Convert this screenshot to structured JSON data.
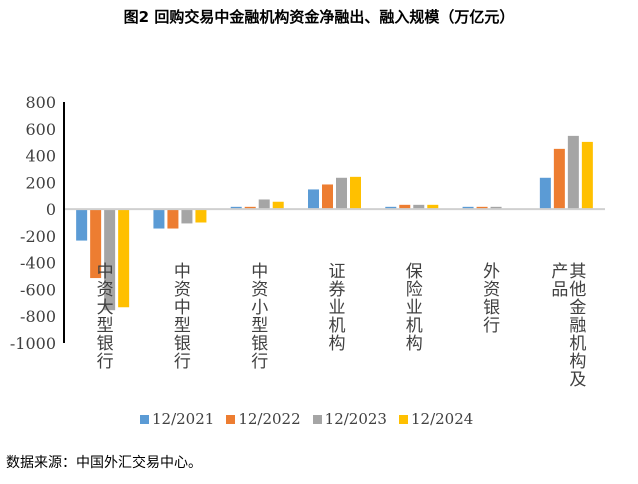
{
  "title": "图2 回购交易中金融机构资金净融出、融入规模（万亿元）",
  "source": "数据来源：中国外汇交易中心。",
  "chart_data": {
    "type": "bar",
    "title": "图2 回购交易中金融机构资金净融出、融入规模（万亿元）",
    "categories": [
      "中资大型银行",
      "中资中型银行",
      "中资小型银行",
      "证券业机构",
      "保险业机构",
      "外资银行",
      "其他金融机构及产品"
    ],
    "series": [
      {
        "name": "12/2021",
        "color": "#5B9BD5",
        "values": [
          -235,
          -145,
          17,
          147,
          17,
          17,
          234
        ]
      },
      {
        "name": "12/2022",
        "color": "#ED7D31",
        "values": [
          -515,
          -145,
          17,
          184,
          32,
          17,
          450
        ]
      },
      {
        "name": "12/2023",
        "color": "#A5A5A5",
        "values": [
          -755,
          -107,
          72,
          234,
          32,
          17,
          547
        ]
      },
      {
        "name": "12/2024",
        "color": "#FFC000",
        "values": [
          -733,
          -100,
          55,
          241,
          32,
          0,
          502
        ]
      }
    ],
    "ylim": [
      -1000,
      800
    ],
    "yticks": [
      800,
      600,
      400,
      200,
      0,
      -200,
      -400,
      -600,
      -800,
      -1000
    ],
    "legend": "bottom",
    "grid": false
  }
}
